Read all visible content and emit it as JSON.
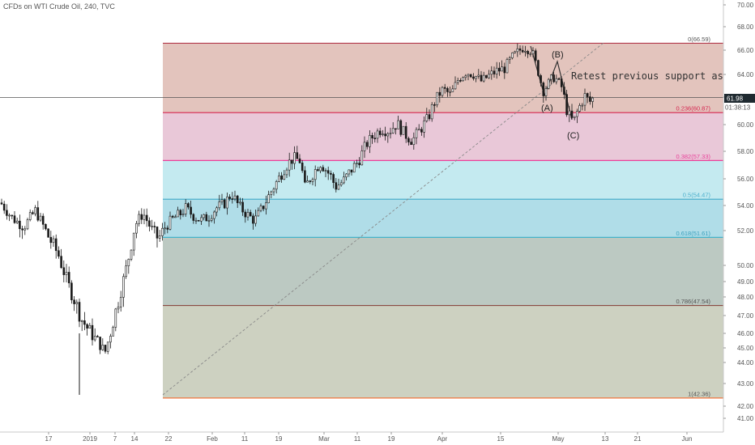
{
  "header": {
    "title": "CFDs on WTI Crude Oil, 240, TVC"
  },
  "chart_data": {
    "type": "candlestick",
    "title": "CFDs on WTI Crude Oil, 240, TVC",
    "ylim": [
      40.5,
      70.4
    ],
    "y_ticks": [
      "70.00",
      "68.00",
      "66.00",
      "64.00",
      "62.00",
      "60.00",
      "58.00",
      "56.00",
      "54.00",
      "52.00",
      "50.00",
      "49.00",
      "48.00",
      "47.00",
      "46.00",
      "45.00",
      "44.00",
      "43.00",
      "42.00",
      "41.00"
    ],
    "x_ticks": [
      "17",
      "2019",
      "7",
      "14",
      "22",
      "Feb",
      "11",
      "19",
      "Mar",
      "11",
      "19",
      "Apr",
      "15",
      "May",
      "13",
      "21",
      "Jun"
    ],
    "price_path": [
      [
        0,
        54.2
      ],
      [
        3,
        53.0
      ],
      [
        6,
        52.3
      ],
      [
        9,
        53.6
      ],
      [
        12,
        51.8
      ],
      [
        15,
        50.6
      ],
      [
        18,
        48.5
      ],
      [
        21,
        46.8
      ],
      [
        24,
        45.8
      ],
      [
        26,
        45.2
      ],
      [
        27,
        44.6
      ],
      [
        29,
        46.5
      ],
      [
        31,
        48.2
      ],
      [
        33,
        50.2
      ],
      [
        35,
        52.5
      ],
      [
        37,
        53.4
      ],
      [
        39,
        52.2
      ],
      [
        41,
        51.5
      ],
      [
        43,
        52.4
      ],
      [
        45,
        53.0
      ],
      [
        47,
        53.4
      ],
      [
        48,
        53.8
      ],
      [
        50,
        53.2
      ],
      [
        52,
        52.8
      ],
      [
        54,
        53.1
      ],
      [
        56,
        53.8
      ],
      [
        58,
        54.1
      ],
      [
        60,
        54.9
      ],
      [
        62,
        53.9
      ],
      [
        64,
        53.3
      ],
      [
        66,
        52.8
      ],
      [
        68,
        53.8
      ],
      [
        70,
        54.9
      ],
      [
        72,
        55.9
      ],
      [
        74,
        56.9
      ],
      [
        76,
        57.5
      ],
      [
        78,
        57.3
      ],
      [
        79,
        55.3
      ],
      [
        81,
        56.3
      ],
      [
        83,
        57.2
      ],
      [
        85,
        56.5
      ],
      [
        86,
        56.1
      ],
      [
        87,
        55.4
      ],
      [
        89,
        55.8
      ],
      [
        91,
        56.6
      ],
      [
        93,
        57.3
      ],
      [
        95,
        58.5
      ],
      [
        97,
        59.2
      ],
      [
        99,
        59.7
      ],
      [
        101,
        59.5
      ],
      [
        103,
        60.1
      ],
      [
        105,
        59.3
      ],
      [
        107,
        58.8
      ],
      [
        109,
        59.6
      ],
      [
        111,
        60.4
      ],
      [
        113,
        61.8
      ],
      [
        115,
        62.7
      ],
      [
        117,
        62.2
      ],
      [
        119,
        63.6
      ],
      [
        121,
        64.2
      ],
      [
        123,
        64.0
      ],
      [
        125,
        63.4
      ],
      [
        127,
        63.9
      ],
      [
        129,
        64.3
      ],
      [
        131,
        64.5
      ],
      [
        133,
        65.4
      ],
      [
        135,
        66.0
      ],
      [
        136,
        66.3
      ],
      [
        138,
        66.0
      ],
      [
        140,
        64.0
      ],
      [
        141,
        62.5
      ],
      [
        143,
        63.5
      ],
      [
        144,
        63.8
      ],
      [
        146,
        62.8
      ],
      [
        147,
        61.2
      ],
      [
        148,
        60.5
      ],
      [
        149,
        60.2
      ],
      [
        150,
        61.0
      ],
      [
        151,
        61.6
      ],
      [
        152,
        62.2
      ],
      [
        153,
        61.6
      ],
      [
        154,
        61.9
      ]
    ],
    "series_x_range": [
      0,
      154
    ],
    "fibonacci": [
      {
        "ratio": "0",
        "label": "0(66.59)",
        "price": 66.59,
        "line_color": "#b2384b",
        "text_color": "#555555"
      },
      {
        "ratio": "0.236",
        "label": "0.236(60.87)",
        "price": 60.87,
        "line_color": "#d6254f",
        "text_color": "#d6254f"
      },
      {
        "ratio": "0.382",
        "label": "0.382(57.33)",
        "price": 57.33,
        "line_color": "#e9409a",
        "text_color": "#e9409a"
      },
      {
        "ratio": "0.5",
        "label": "0.5(54.47)",
        "price": 54.47,
        "line_color": "#4db0cd",
        "text_color": "#4db0cd"
      },
      {
        "ratio": "0.618",
        "label": "0.618(51.61)",
        "price": 51.61,
        "line_color": "#44b3c8",
        "text_color": "#3aa0bd"
      },
      {
        "ratio": "0.786",
        "label": "0.786(47.54)",
        "price": 47.54,
        "line_color": "#8a4b43",
        "text_color": "#555555"
      },
      {
        "ratio": "1",
        "label": "1(42.36)",
        "price": 42.36,
        "line_color": "#f26a2c",
        "text_color": "#555555"
      }
    ],
    "fib_zone_colors": [
      "#e3c4bd",
      "#e9c8d8",
      "#c4eaf0",
      "#b0dde8",
      "#bcc9c2",
      "#cdd1c1"
    ],
    "current_price": {
      "value": "61.98",
      "countdown": "01:38:13",
      "price": 61.98
    },
    "annotations": [
      {
        "text": "Retest previous support as res"
      },
      {
        "text": "(A)"
      },
      {
        "text": "(B)"
      },
      {
        "text": "(C)"
      }
    ]
  }
}
